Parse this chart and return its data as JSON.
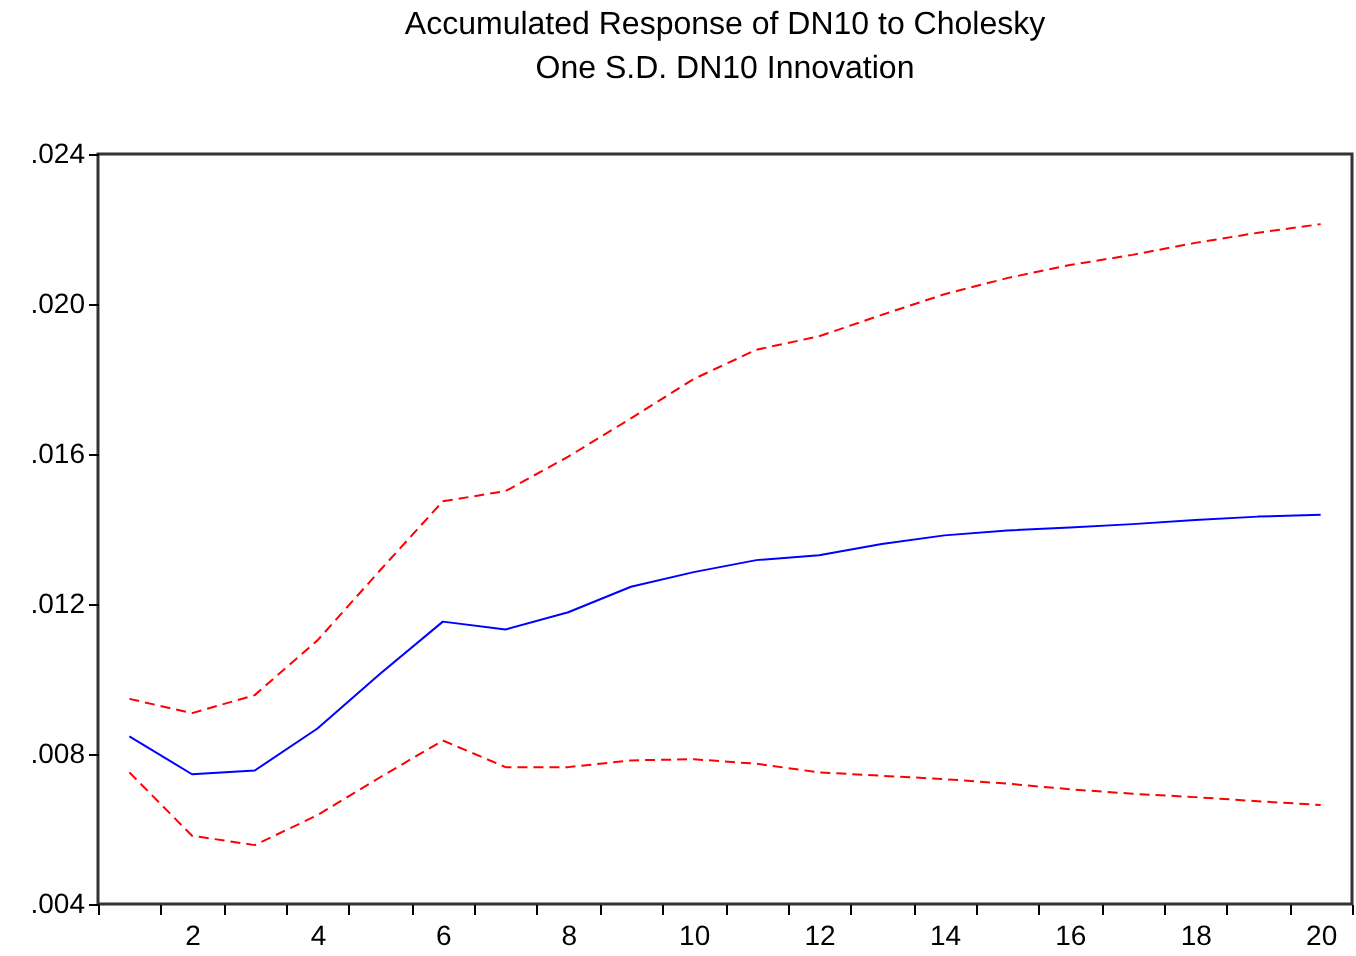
{
  "chart_data": {
    "type": "line",
    "title": "Accumulated Response of DN10 to Cholesky\nOne S.D. DN10 Innovation",
    "categories": [
      null,
      "2",
      null,
      "4",
      null,
      "6",
      null,
      "8",
      null,
      "10",
      null,
      "12",
      null,
      "14",
      null,
      "16",
      null,
      "18",
      null,
      "20"
    ],
    "series": [
      {
        "color": "#0000ff",
        "line_style": "solid",
        "values": [
          0.00847,
          0.00746,
          0.00756,
          0.00868,
          0.01014,
          0.01153,
          0.01132,
          0.01178,
          0.01246,
          0.01285,
          0.01317,
          0.0133,
          0.0136,
          0.01383,
          0.01396,
          0.01404,
          0.01413,
          0.01424,
          0.01433,
          0.01438
        ]
      },
      {
        "color": "#ff0000",
        "line_style": "dashed",
        "values": [
          0.00947,
          0.00909,
          0.00957,
          0.01103,
          0.0129,
          0.01474,
          0.01501,
          0.01593,
          0.01695,
          0.018,
          0.01878,
          0.01914,
          0.01971,
          0.02026,
          0.02069,
          0.02104,
          0.02131,
          0.02163,
          0.0219,
          0.02213
        ]
      },
      {
        "color": "#ff0000",
        "line_style": "dashed",
        "values": [
          0.00751,
          0.00582,
          0.00557,
          0.00637,
          0.00738,
          0.00836,
          0.00765,
          0.00765,
          0.00783,
          0.00786,
          0.00774,
          0.00751,
          0.00742,
          0.00733,
          0.00721,
          0.00706,
          0.00694,
          0.00685,
          0.00674,
          0.00664
        ]
      }
    ],
    "ylim": [
      0.004,
      0.024
    ],
    "yticks": [
      {
        "value": 0.004,
        "label": ".004"
      },
      {
        "value": 0.008,
        "label": ".008"
      },
      {
        "value": 0.012,
        "label": ".012"
      },
      {
        "value": 0.016,
        "label": ".016"
      },
      {
        "value": 0.02,
        "label": ".020"
      },
      {
        "value": 0.024,
        "label": ".024"
      }
    ],
    "grid": false
  }
}
